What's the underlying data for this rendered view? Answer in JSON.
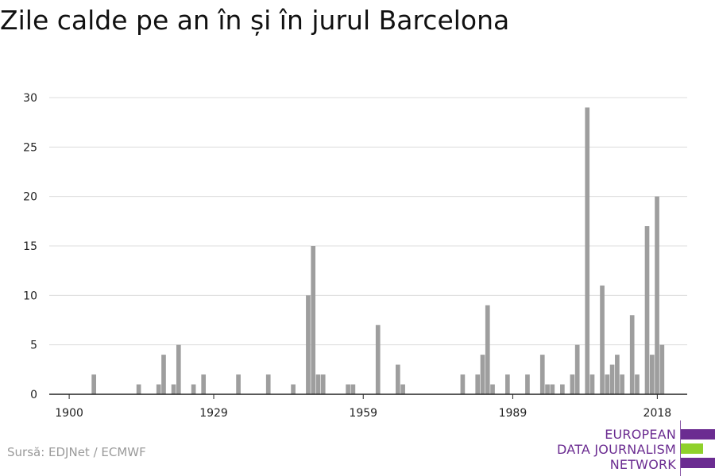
{
  "title": "Zile calde pe an în și în jurul Barcelona",
  "source": "Sursă: EDJNet / ECMWF",
  "logo": {
    "lines": [
      "EUROPEAN",
      "DATA JOURNALISM",
      "NETWORK"
    ],
    "colors": {
      "purple": "#6b2c91",
      "green": "#8fd12b"
    }
  },
  "chart_data": {
    "type": "bar",
    "title": "Zile calde pe an în și în jurul Barcelona",
    "xlabel": "",
    "ylabel": "",
    "x_ticks": [
      1900,
      1929,
      1959,
      1989,
      2018
    ],
    "y_ticks": [
      0,
      5,
      10,
      15,
      20,
      25,
      30
    ],
    "ylim": [
      0,
      30
    ],
    "xlim": [
      1896,
      2024
    ],
    "grid": true,
    "bar_color": "#9e9e9e",
    "x": [
      1905,
      1914,
      1918,
      1919,
      1921,
      1922,
      1925,
      1927,
      1934,
      1940,
      1945,
      1948,
      1949,
      1950,
      1951,
      1956,
      1957,
      1962,
      1966,
      1967,
      1979,
      1982,
      1983,
      1984,
      1985,
      1988,
      1992,
      1995,
      1996,
      1997,
      1999,
      2001,
      2002,
      2004,
      2005,
      2007,
      2008,
      2009,
      2010,
      2011,
      2013,
      2014,
      2016,
      2017,
      2018,
      2019
    ],
    "values": [
      2,
      1,
      1,
      4,
      1,
      5,
      1,
      2,
      2,
      2,
      1,
      10,
      15,
      2,
      2,
      1,
      1,
      7,
      3,
      1,
      2,
      2,
      4,
      9,
      1,
      2,
      2,
      4,
      1,
      1,
      1,
      2,
      5,
      29,
      2,
      11,
      2,
      3,
      4,
      2,
      8,
      2,
      17,
      4,
      20,
      5
    ]
  }
}
